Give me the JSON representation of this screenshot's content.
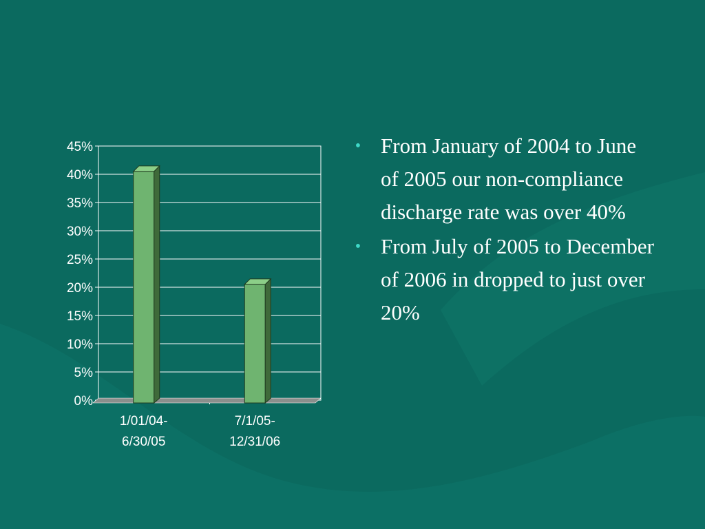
{
  "colors": {
    "background": "#0b6a5f",
    "bar_front": "#6fb470",
    "bar_side": "#3f6a3a",
    "bar_top": "#8ccf88",
    "text": "#ffffff",
    "bullet": "#3fd9c8"
  },
  "chart_data": {
    "type": "bar",
    "categories": [
      [
        "1/01/04-",
        "6/30/05"
      ],
      [
        "7/1/05-",
        "12/31/06"
      ]
    ],
    "values": [
      40.5,
      20.5
    ],
    "ylim": [
      0,
      45
    ],
    "yticks": [
      "0%",
      "5%",
      "10%",
      "15%",
      "20%",
      "25%",
      "30%",
      "35%",
      "40%",
      "45%"
    ],
    "grid": true,
    "style": "3d"
  },
  "bullets": [
    "From January of 2004 to June of 2005 our non-compliance discharge rate was over 40%",
    "From July of 2005 to December of 2006 in dropped to just over 20%"
  ]
}
